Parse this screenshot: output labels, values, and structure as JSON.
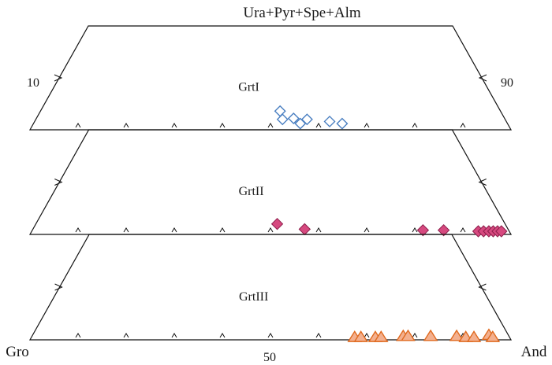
{
  "chart_data": {
    "type": "scatter",
    "title": "Ura+Pyr+Spe+Alm",
    "corner_labels": {
      "left": "Gro",
      "right": "And"
    },
    "axis_labels": {
      "center": "50",
      "left_edge": "10",
      "right_edge": "90"
    },
    "x_axis": {
      "from": "Gro",
      "to": "And",
      "range": [
        0,
        100
      ],
      "tick_step": 10
    },
    "y_axis": {
      "name": "Ura+Pyr+Spe+Alm",
      "range": [
        0,
        100
      ],
      "visible_max": 10
    },
    "panels": [
      {
        "label": "GrtI",
        "marker": "diamond-open",
        "color": "#4a7fc1",
        "points": [
          {
            "and": 52,
            "ura_pyr_spe_alm": 1.8
          },
          {
            "and": 52.5,
            "ura_pyr_spe_alm": 1.0
          },
          {
            "and": 54.8,
            "ura_pyr_spe_alm": 1.1
          },
          {
            "and": 56.2,
            "ura_pyr_spe_alm": 0.6
          },
          {
            "and": 57.6,
            "ura_pyr_spe_alm": 1.0
          },
          {
            "and": 62.3,
            "ura_pyr_spe_alm": 0.8
          },
          {
            "and": 64.9,
            "ura_pyr_spe_alm": 0.6
          }
        ]
      },
      {
        "label": "GrtII",
        "marker": "diamond-filled",
        "color": "#d6497f",
        "stroke": "#8c1d4a",
        "points": [
          {
            "and": 51.4,
            "ura_pyr_spe_alm": 1.0
          },
          {
            "and": 57.1,
            "ura_pyr_spe_alm": 0.5
          },
          {
            "and": 81.7,
            "ura_pyr_spe_alm": 0.4
          },
          {
            "and": 86.0,
            "ura_pyr_spe_alm": 0.4
          },
          {
            "and": 93.2,
            "ura_pyr_spe_alm": 0.3
          },
          {
            "and": 94.3,
            "ura_pyr_spe_alm": 0.3
          },
          {
            "and": 95.4,
            "ura_pyr_spe_alm": 0.3
          },
          {
            "and": 96.3,
            "ura_pyr_spe_alm": 0.3
          },
          {
            "and": 97.2,
            "ura_pyr_spe_alm": 0.3
          },
          {
            "and": 98.0,
            "ura_pyr_spe_alm": 0.3
          }
        ]
      },
      {
        "label": "GrtIII",
        "marker": "triangle",
        "color": "#f3b08f",
        "stroke": "#e06a1f",
        "points": [
          {
            "and": 67.5,
            "ura_pyr_spe_alm": 0.2
          },
          {
            "and": 68.8,
            "ura_pyr_spe_alm": 0.2
          },
          {
            "and": 71.8,
            "ura_pyr_spe_alm": 0.2
          },
          {
            "and": 73.0,
            "ura_pyr_spe_alm": 0.2
          },
          {
            "and": 77.6,
            "ura_pyr_spe_alm": 0.3
          },
          {
            "and": 78.6,
            "ura_pyr_spe_alm": 0.3
          },
          {
            "and": 83.3,
            "ura_pyr_spe_alm": 0.3
          },
          {
            "and": 88.7,
            "ura_pyr_spe_alm": 0.3
          },
          {
            "and": 90.6,
            "ura_pyr_spe_alm": 0.2
          },
          {
            "and": 92.3,
            "ura_pyr_spe_alm": 0.2
          },
          {
            "and": 95.4,
            "ura_pyr_spe_alm": 0.4
          },
          {
            "and": 96.2,
            "ura_pyr_spe_alm": 0.2
          }
        ]
      }
    ]
  }
}
